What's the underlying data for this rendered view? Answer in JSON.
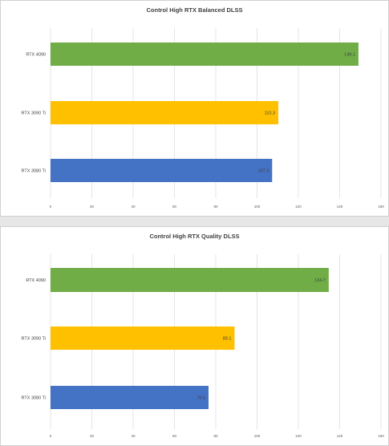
{
  "chart_data": [
    {
      "type": "bar",
      "orientation": "horizontal",
      "title": "Control High RTX Balanced DLSS",
      "categories": [
        "RTX 4090",
        "RTX 3090 Ti",
        "RTX 3080 Ti"
      ],
      "values": [
        149.1,
        110.3,
        107.3
      ],
      "value_labels": [
        "149.1",
        "110.3",
        "107.3"
      ],
      "colors": [
        "#70AD47",
        "#FFC000",
        "#4472C4"
      ],
      "xlim": [
        0,
        160
      ],
      "xticks": [
        "0",
        "20",
        "40",
        "60",
        "80",
        "100",
        "120",
        "140",
        "160"
      ],
      "grid": true
    },
    {
      "type": "bar",
      "orientation": "horizontal",
      "title": "Control High RTX Quality DLSS",
      "categories": [
        "RTX 4090",
        "RTX 3090 Ti",
        "RTX 3080 Ti"
      ],
      "values": [
        134.7,
        89.1,
        76.5
      ],
      "value_labels": [
        "134.7",
        "89.1",
        "76.5"
      ],
      "colors": [
        "#70AD47",
        "#FFC000",
        "#4472C4"
      ],
      "xlim": [
        0,
        160
      ],
      "xticks": [
        "0",
        "20",
        "40",
        "60",
        "80",
        "100",
        "120",
        "140",
        "160"
      ],
      "grid": true
    }
  ]
}
